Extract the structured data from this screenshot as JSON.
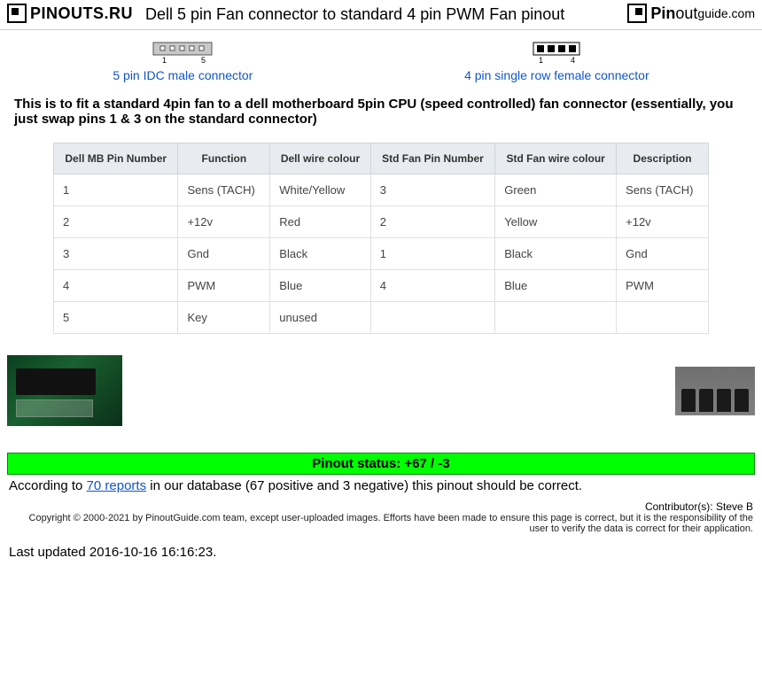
{
  "header": {
    "logo_left": "PINOUTS.RU",
    "title": "Dell 5 pin Fan connector to standard 4 pin PWM Fan pinout",
    "logo_right_pin": "Pin",
    "logo_right_out": "out",
    "logo_right_guide": "guide.com"
  },
  "connectors": {
    "left": {
      "label": "5 pin IDC male connector",
      "pin_start": "1",
      "pin_end": "5",
      "pin_count": 5
    },
    "right": {
      "label": "4 pin single row female connector",
      "pin_start": "1",
      "pin_end": "4",
      "pin_count": 4
    }
  },
  "description": "This is to fit a standard 4pin fan to a dell motherboard 5pin CPU (speed controlled) fan connector (essentially, you just swap pins 1 & 3 on the standard connector)",
  "table": {
    "columns": [
      "Dell MB Pin Number",
      "Function",
      "Dell wire colour",
      "Std Fan Pin Number",
      "Std Fan wire colour",
      "Description"
    ],
    "rows": [
      [
        "1",
        "Sens (TACH)",
        "White/Yellow",
        "3",
        "Green",
        "Sens (TACH)"
      ],
      [
        "2",
        "+12v",
        "Red",
        "2",
        "Yellow",
        "+12v"
      ],
      [
        "3",
        "Gnd",
        "Black",
        "1",
        "Black",
        "Gnd"
      ],
      [
        "4",
        "PWM",
        "Blue",
        "4",
        "Blue",
        "PWM"
      ],
      [
        "5",
        "Key",
        "unused",
        "",
        "",
        ""
      ]
    ],
    "header_bg": "#e8ebf0",
    "border_color": "#e0e0e0"
  },
  "status": {
    "bar_text": "Pinout status: +67 / -3",
    "bar_bg": "#00ff00",
    "text_prefix": "According to ",
    "link_text": "70 reports",
    "text_suffix": " in our database (67 positive and 3 negative) this pinout should be correct."
  },
  "footer": {
    "contributor": "Contributor(s): Steve B",
    "copyright": "Copyright © 2000-2021 by PinoutGuide.com team, except user-uploaded images. Efforts have been made to ensure this page is correct, but it is the responsibility of the user to verify the data is correct for their application.",
    "updated": "Last updated 2016-10-16 16:16:23."
  },
  "link_color": "#1155cc"
}
